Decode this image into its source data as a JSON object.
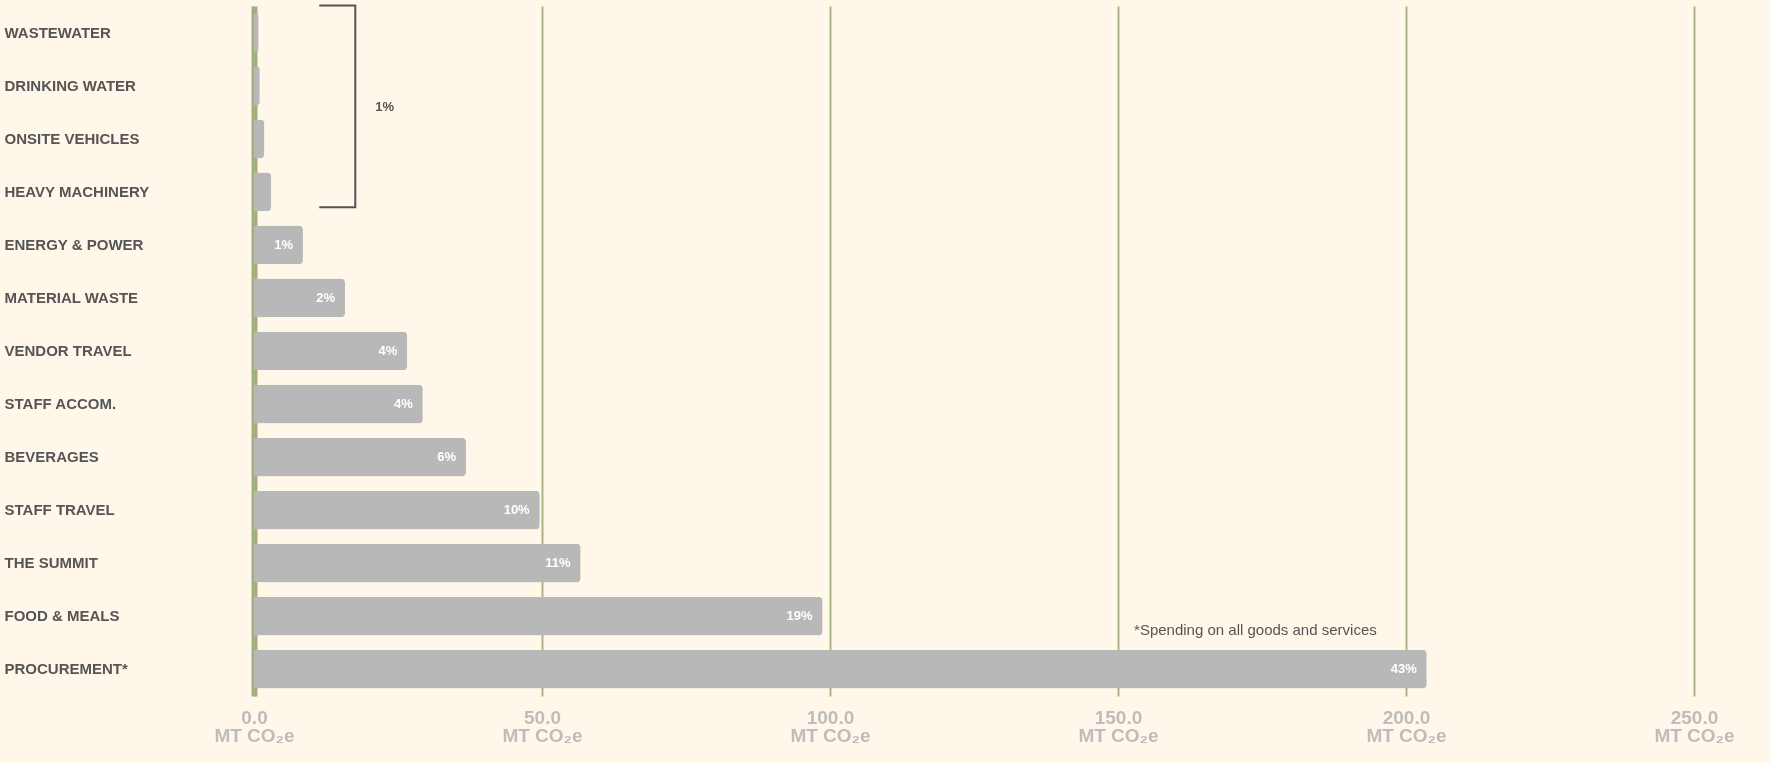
{
  "chart_data": {
    "type": "bar",
    "orientation": "horizontal",
    "categories": [
      "WASTEWATER",
      "DRINKING WATER",
      "ONSITE VEHICLES",
      "HEAVY MACHINERY",
      "ENERGY & POWER",
      "MATERIAL WASTE",
      "VENDOR TRAVEL",
      "STAFF ACCOM.",
      "BEVERAGES",
      "STAFF TRAVEL",
      "THE SUMMIT",
      "FOOD & MEALS",
      "PROCUREMENT*"
    ],
    "values": [
      0.8,
      1.0,
      1.8,
      3.0,
      8.5,
      15.8,
      26.6,
      29.3,
      36.8,
      49.6,
      56.7,
      98.7,
      203.6
    ],
    "color": "#b8b8b8",
    "xlim": [
      0,
      250
    ],
    "xticks": [
      {
        "value": 0,
        "label": "0.0\nMT CO₂e"
      },
      {
        "value": 50,
        "label": "50.0\nMT CO₂e"
      },
      {
        "value": 100,
        "label": "100.0\nMT CO₂e"
      },
      {
        "value": 150,
        "label": "150.0\nMT CO₂e"
      },
      {
        "value": 200,
        "label": "200.0\nMT CO₂e"
      },
      {
        "value": 250,
        "label": "250.0\nMT CO₂e"
      }
    ],
    "grid": "x",
    "annotations": [
      "1%",
      "*Spending on all goods and services",
      {
        "text": "1%",
        "x": 8.5,
        "y": "ENERGY & POWER"
      },
      {
        "text": "2%",
        "x": 15.8,
        "y": "MATERIAL WASTE"
      },
      {
        "text": "4%",
        "x": 26.6,
        "y": "VENDOR TRAVEL"
      },
      {
        "text": "4%",
        "x": 29.3,
        "y": "STAFF ACCOM."
      },
      {
        "text": "6%",
        "x": 36.8,
        "y": "BEVERAGES"
      },
      {
        "text": "10%",
        "x": 49.6,
        "y": "STAFF TRAVEL"
      },
      {
        "text": "11%",
        "x": 56.7,
        "y": "THE SUMMIT"
      },
      {
        "text": "19%",
        "x": 98.7,
        "y": "FOOD & MEALS"
      },
      {
        "text": "43%",
        "x": 203.6,
        "y": "PROCUREMENT*"
      }
    ]
  }
}
